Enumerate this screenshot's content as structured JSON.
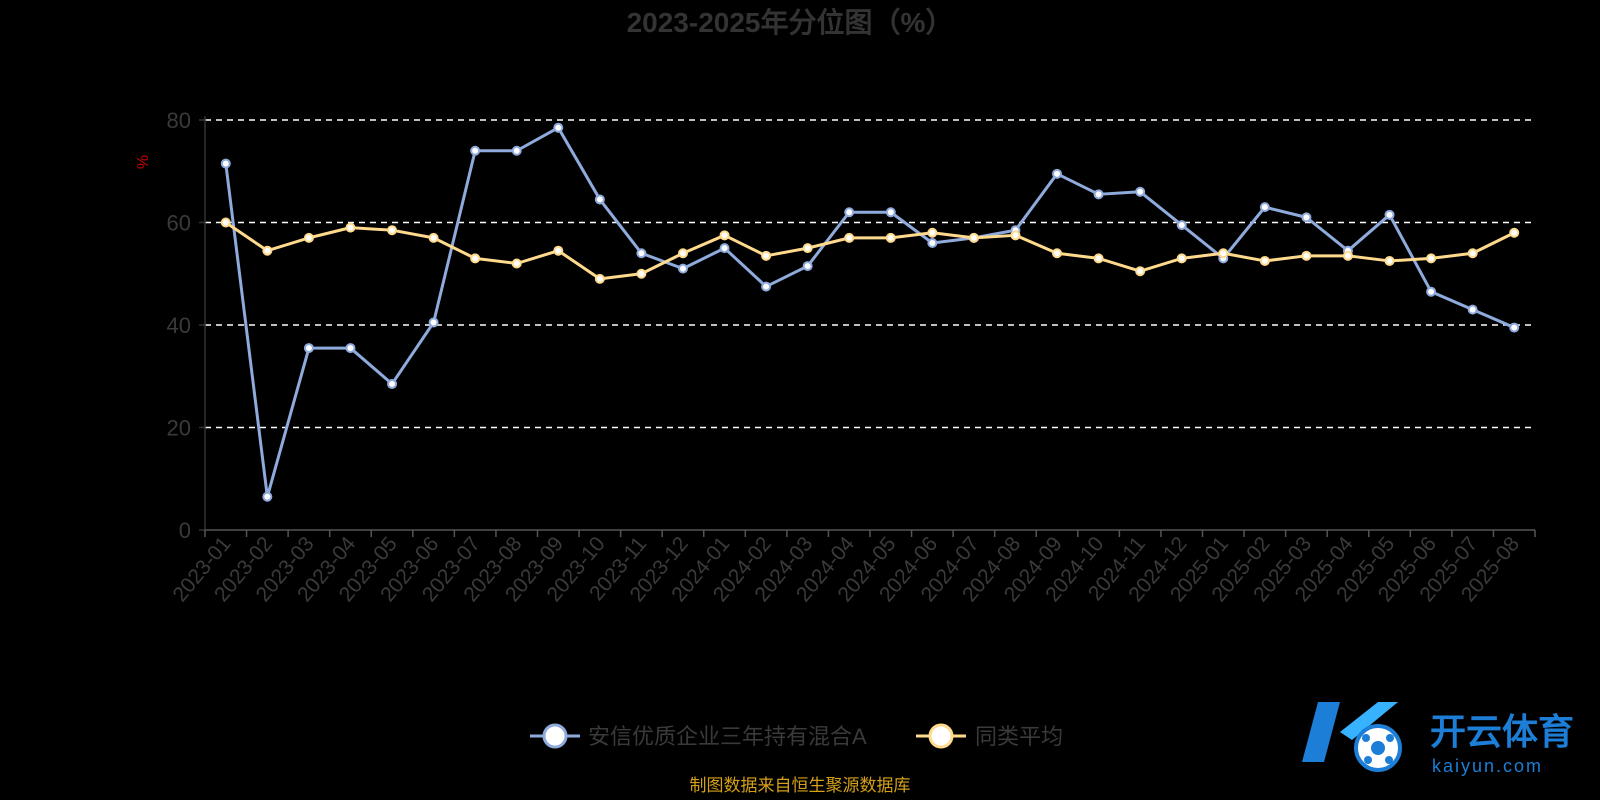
{
  "chart_data": {
    "type": "line",
    "title": "2023-2025年分位图（%）",
    "ylabel": "%",
    "ylim": [
      0,
      80
    ],
    "yticks": [
      "0",
      "20",
      "40",
      "60",
      "80"
    ],
    "grid": true,
    "legend_position": "bottom",
    "categories": [
      "2023-01",
      "2023-02",
      "2023-03",
      "2023-04",
      "2023-05",
      "2023-06",
      "2023-07",
      "2023-08",
      "2023-09",
      "2023-10",
      "2023-11",
      "2023-12",
      "2024-01",
      "2024-02",
      "2024-03",
      "2024-04",
      "2024-05",
      "2024-06",
      "2024-07",
      "2024-08",
      "2024-09",
      "2024-10",
      "2024-11",
      "2024-12",
      "2025-01",
      "2025-02",
      "2025-03",
      "2025-04",
      "2025-05",
      "2025-06",
      "2025-07",
      "2025-08"
    ],
    "series": [
      {
        "name": "安信优质企业三年持有混合A",
        "color": "#8faadc",
        "values": [
          71.5,
          6.5,
          35.5,
          35.5,
          28.5,
          40.5,
          74,
          74,
          78.5,
          64.5,
          54,
          51,
          55,
          47.5,
          51.5,
          62,
          62,
          56,
          57,
          58.5,
          69.5,
          65.5,
          66,
          59.5,
          53,
          63,
          61,
          54.5,
          61.5,
          46.5,
          43,
          39.5
        ]
      },
      {
        "name": "同类平均",
        "color": "#ffd98c",
        "values": [
          60,
          54.5,
          57,
          59,
          58.5,
          57,
          53,
          52,
          54.5,
          49,
          50,
          54,
          57.5,
          53.5,
          55,
          57,
          57,
          58,
          57,
          57.5,
          54,
          53,
          50.5,
          53,
          54,
          52.5,
          53.5,
          53.5,
          52.5,
          53,
          54,
          58
        ]
      }
    ]
  },
  "source_note": "制图数据来自恒生聚源数据库",
  "watermark": {
    "brand": "开云体育",
    "domain": "kaiyun.com",
    "logo_icon": "k-soccer-logo-icon",
    "color": "#1c7ed6"
  }
}
